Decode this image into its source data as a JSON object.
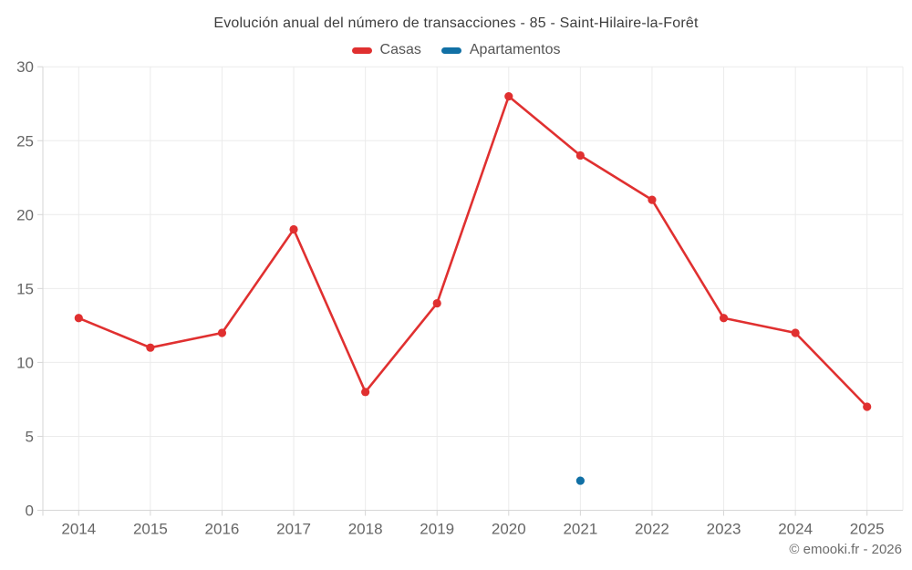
{
  "title": "Evolución anual del número de transacciones - 85 - Saint-Hilaire-la-Forêt",
  "legend": [
    {
      "label": "Casas",
      "color": "#e03030"
    },
    {
      "label": "Apartamentos",
      "color": "#1170a5"
    }
  ],
  "footer": "© emooki.fr - 2026",
  "colors": {
    "grid": "#ebebeb",
    "axis": "#d6d6d6",
    "tick_label": "#666666"
  },
  "chart_data": {
    "type": "line",
    "categories": [
      "2014",
      "2015",
      "2016",
      "2017",
      "2018",
      "2019",
      "2020",
      "2021",
      "2022",
      "2023",
      "2024",
      "2025"
    ],
    "series": [
      {
        "name": "Casas",
        "color": "#e03030",
        "values": [
          13,
          11,
          12,
          19,
          8,
          14,
          28,
          24,
          21,
          13,
          12,
          7
        ]
      },
      {
        "name": "Apartamentos",
        "color": "#1170a5",
        "values": [
          null,
          null,
          null,
          null,
          null,
          null,
          null,
          2,
          null,
          null,
          null,
          null
        ]
      }
    ],
    "title": "Evolución anual del número de transacciones - 85 - Saint-Hilaire-la-Forêt",
    "xlabel": "",
    "ylabel": "",
    "ylim": [
      0,
      30
    ],
    "yticks": [
      0,
      5,
      10,
      15,
      20,
      25,
      30
    ],
    "grid": true,
    "legend_position": "top"
  }
}
